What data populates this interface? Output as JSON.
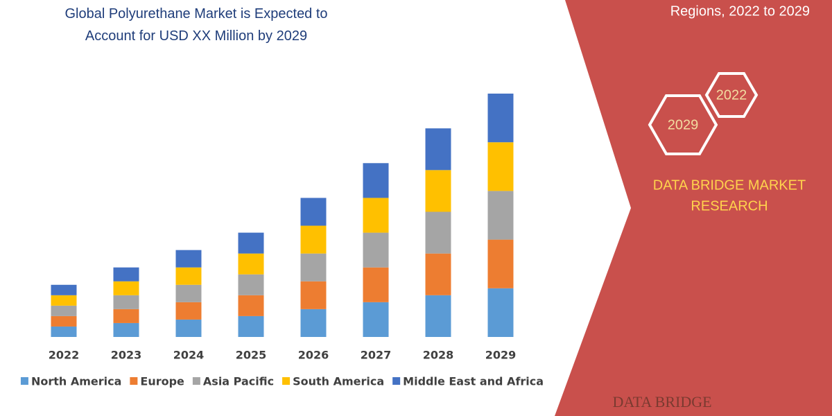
{
  "chart_data": {
    "type": "stacked-bar",
    "title": "Global Polyurethane Market is Expected to Account for USD XX Million by 2029",
    "categories": [
      "2022",
      "2023",
      "2024",
      "2025",
      "2026",
      "2027",
      "2028",
      "2029"
    ],
    "series": [
      {
        "name": "North America",
        "color": "#5b9bd5",
        "values": [
          15,
          20,
          25,
          30,
          40,
          50,
          60,
          70
        ]
      },
      {
        "name": "Europe",
        "color": "#ed7d31",
        "values": [
          15,
          20,
          25,
          30,
          40,
          50,
          60,
          70
        ]
      },
      {
        "name": "Asia Pacific",
        "color": "#a5a5a5",
        "values": [
          15,
          20,
          25,
          30,
          40,
          50,
          60,
          70
        ]
      },
      {
        "name": "South America",
        "color": "#ffc000",
        "values": [
          15,
          20,
          25,
          30,
          40,
          50,
          60,
          70
        ]
      },
      {
        "name": "Middle East and Africa",
        "color": "#4472c4",
        "values": [
          15,
          20,
          25,
          30,
          40,
          50,
          60,
          70
        ]
      }
    ],
    "legend": "bottom"
  },
  "panel": {
    "subtitle": "Regions, 2022 to 2029",
    "hex_labels": [
      "2022",
      "2029"
    ],
    "brand": [
      "DATA BRIDGE MARKET",
      "RESEARCH"
    ],
    "logo": "DATA BRIDGE"
  }
}
